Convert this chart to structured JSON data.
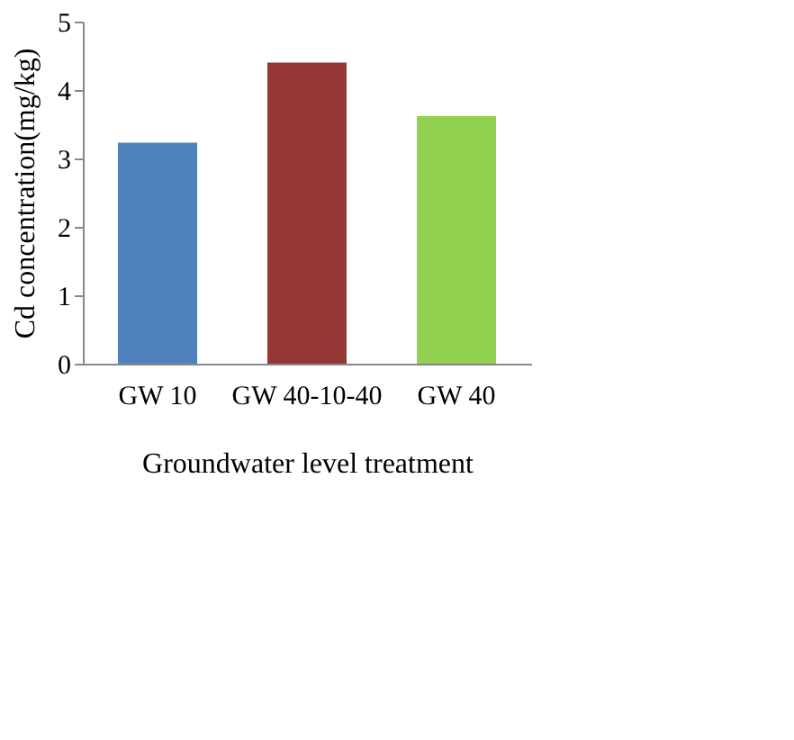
{
  "chart_data": {
    "type": "bar",
    "categories": [
      "GW 10",
      "GW 40-10-40",
      "GW 40"
    ],
    "values": [
      3.23,
      4.4,
      3.62
    ],
    "colors": [
      "#4f81bd",
      "#953735",
      "#92d050"
    ],
    "xlabel": "Groundwater level treatment",
    "ylabel": "Cd concentration(mg/kg)",
    "ylim": [
      0,
      5
    ],
    "yticks": [
      0,
      1,
      2,
      3,
      4,
      5
    ],
    "grid": false
  }
}
